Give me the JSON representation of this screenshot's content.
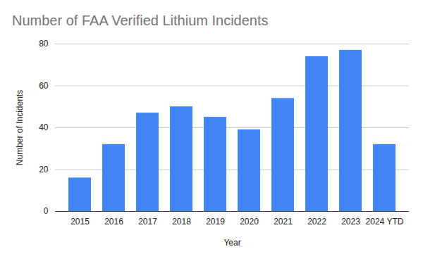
{
  "chart_data": {
    "type": "bar",
    "title": "Number of FAA Verified Lithium Incidents",
    "x_label": "Year",
    "y_label": "Number of Incidents",
    "categories": [
      "2015",
      "2016",
      "2017",
      "2018",
      "2019",
      "2020",
      "2021",
      "2022",
      "2023",
      "2024 YTD"
    ],
    "values": [
      16,
      32,
      47,
      50,
      45,
      39,
      54,
      74,
      77,
      32
    ],
    "color": "#4285f4",
    "ylim": [
      0,
      80
    ],
    "yticks": [
      0,
      20,
      40,
      60,
      80
    ],
    "grid": true
  }
}
